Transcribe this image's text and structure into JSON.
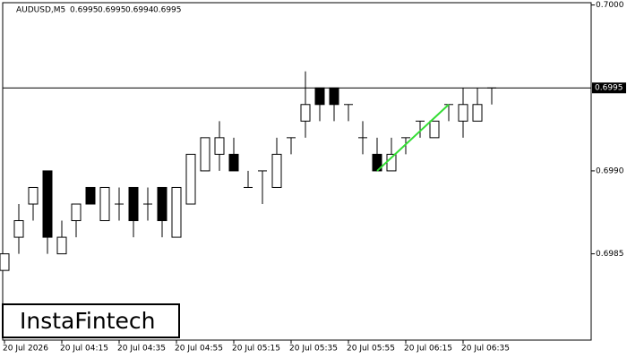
{
  "chart_data": {
    "type": "candlestick",
    "symbol": "AUDUSD,M5",
    "header_values": [
      0.6995,
      0.6995,
      0.6994,
      0.6995
    ],
    "watermark": "InstaFintech",
    "categories": [
      "20 Jul 2026",
      null,
      null,
      null,
      "20 Jul 04:15",
      null,
      null,
      null,
      "20 Jul 04:35",
      null,
      null,
      null,
      "20 Jul 04:55",
      null,
      null,
      null,
      "20 Jul 05:15",
      null,
      null,
      null,
      "20 Jul 05:35",
      null,
      null,
      null,
      "20 Jul 05:55",
      null,
      null,
      null,
      "20 Jul 06:15",
      null,
      null,
      null,
      "20 Jul 06:35",
      null,
      null
    ],
    "open": [
      0.6984,
      0.6986,
      0.6988,
      0.699,
      0.6985,
      0.6987,
      0.6989,
      0.6987,
      0.6988,
      0.6989,
      0.6988,
      0.6989,
      0.6986,
      0.6988,
      0.699,
      0.6991,
      0.6991,
      0.6989,
      0.699,
      0.6989,
      0.6992,
      0.6993,
      0.6995,
      0.6995,
      0.6994,
      0.6992,
      0.6991,
      0.699,
      0.6992,
      0.6993,
      0.6992,
      0.6994,
      0.6993,
      0.6993,
      0.6995
    ],
    "high": [
      0.6985,
      0.6988,
      0.6989,
      0.699,
      0.6987,
      0.6988,
      0.6989,
      0.6989,
      0.6989,
      0.6989,
      0.6989,
      0.6989,
      0.6989,
      0.6991,
      0.6992,
      0.6993,
      0.6992,
      0.699,
      0.699,
      0.6992,
      0.6992,
      0.6996,
      0.6995,
      0.6995,
      0.6994,
      0.6993,
      0.6992,
      0.6992,
      0.6992,
      0.6993,
      0.6993,
      0.6994,
      0.6995,
      0.6995,
      0.6995
    ],
    "low": [
      0.6984,
      0.6985,
      0.6987,
      0.6985,
      0.6985,
      0.6986,
      0.6988,
      0.6987,
      0.6987,
      0.6986,
      0.6987,
      0.6986,
      0.6986,
      0.6988,
      0.699,
      0.699,
      0.699,
      0.6989,
      0.6988,
      0.6989,
      0.6991,
      0.6992,
      0.6993,
      0.6993,
      0.6993,
      0.6991,
      0.699,
      0.699,
      0.6991,
      0.6992,
      0.6992,
      0.6993,
      0.6992,
      0.6993,
      0.6994
    ],
    "close": [
      0.6985,
      0.6987,
      0.6989,
      0.6986,
      0.6986,
      0.6988,
      0.6988,
      0.6989,
      0.6988,
      0.6987,
      0.6988,
      0.6987,
      0.6989,
      0.6991,
      0.6992,
      0.6992,
      0.699,
      0.6989,
      0.699,
      0.6991,
      0.6992,
      0.6994,
      0.6994,
      0.6994,
      0.6994,
      0.6992,
      0.699,
      0.6991,
      0.6992,
      0.6993,
      0.6993,
      0.6994,
      0.6994,
      0.6994,
      0.6995
    ],
    "trend_line": {
      "color": "#33dd33",
      "values": [
        null,
        null,
        null,
        null,
        null,
        null,
        null,
        null,
        null,
        null,
        null,
        null,
        null,
        null,
        null,
        null,
        null,
        null,
        null,
        null,
        null,
        null,
        null,
        null,
        null,
        null,
        0.699,
        0.69908,
        0.69916,
        0.69924,
        0.69932,
        0.6994,
        null,
        null,
        null
      ]
    },
    "price_line": {
      "value": 0.6995,
      "label": "0.6995"
    },
    "ylim": [
      0.69798,
      0.70003
    ],
    "yticks": [
      {
        "value": 0.7,
        "label": "0.7000"
      },
      {
        "value": 0.699,
        "label": "0.6990"
      },
      {
        "value": 0.6985,
        "label": "0.6985"
      }
    ]
  }
}
